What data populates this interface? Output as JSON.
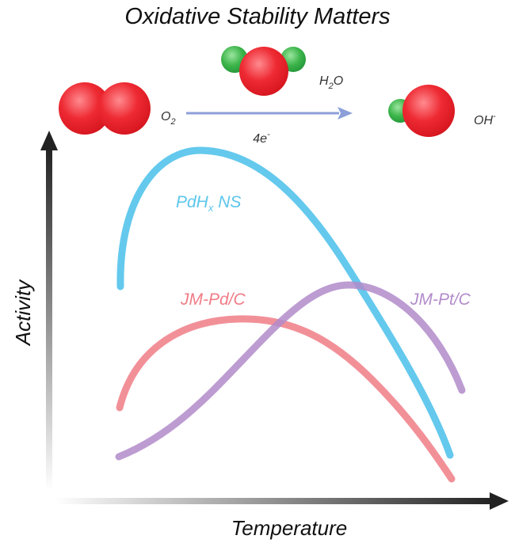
{
  "title": "Oxidative Stability Matters",
  "reaction": {
    "reactant": "O",
    "reactant_sub": "2",
    "water_h": "H",
    "water_sub": "2",
    "water_o": "O",
    "electrons": "4e",
    "electrons_sup": "-",
    "product": "OH",
    "product_sup": "-"
  },
  "axes": {
    "y_label": "Activity",
    "x_label": "Temperature"
  },
  "curves": [
    {
      "label": "PdH",
      "label_sub": "x",
      "label_suffix": " NS",
      "color": "#5cc6ec"
    },
    {
      "label": "JM-Pd/C",
      "color": "#f07c86"
    },
    {
      "label": "JM-Pt/C",
      "color": "#b28bca"
    }
  ],
  "colors": {
    "oxygen": "#e8252d",
    "hydrogen": "#3bb34a",
    "arrow": "#8c9fd8"
  }
}
